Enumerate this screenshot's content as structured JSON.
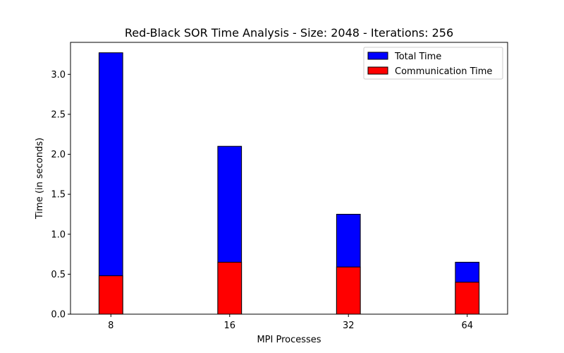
{
  "chart_data": {
    "type": "bar",
    "title": "Red-Black SOR Time Analysis - Size: 2048 - Iterations: 256",
    "xlabel": "MPI Processes",
    "ylabel": "Time (in seconds)",
    "categories": [
      "8",
      "16",
      "32",
      "64"
    ],
    "ylim": [
      0,
      3.4
    ],
    "yticks": [
      0.0,
      0.5,
      1.0,
      1.5,
      2.0,
      2.5,
      3.0
    ],
    "ytick_labels": [
      "0.0",
      "0.5",
      "1.0",
      "1.5",
      "2.0",
      "2.5",
      "3.0"
    ],
    "grid": false,
    "legend_position": "top-right",
    "overlay": true,
    "series": [
      {
        "name": "Total Time",
        "color": "#0000ff",
        "values": [
          3.27,
          2.1,
          1.25,
          0.65
        ]
      },
      {
        "name": "Communication Time",
        "color": "#ff0000",
        "values": [
          0.48,
          0.65,
          0.59,
          0.4
        ]
      }
    ]
  }
}
